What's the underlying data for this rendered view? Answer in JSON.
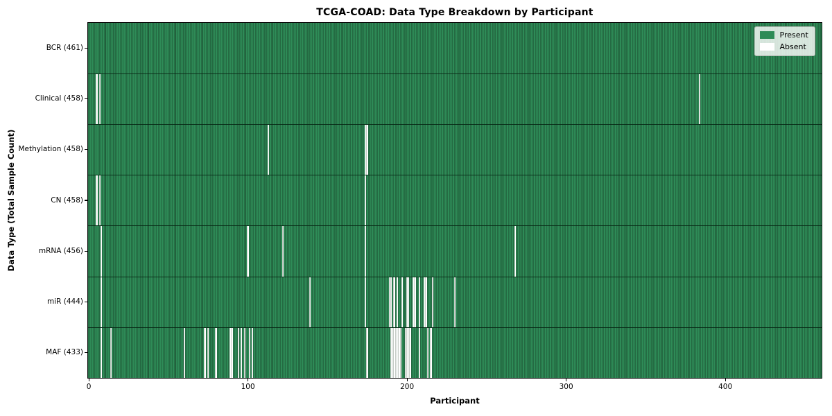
{
  "figure": {
    "title": "TCGA-COAD: Data Type Breakdown by Participant",
    "xlabel": "Participant",
    "ylabel": "Data Type (Total Sample Count)"
  },
  "legend": {
    "items": [
      {
        "label": "Present",
        "color": "#2e8b57"
      },
      {
        "label": "Absent",
        "color": "#ffffff"
      }
    ]
  },
  "colors": {
    "present_fill": "#2e8b57",
    "cell_edge": "#1b4a2e",
    "absent_fill": "#ffffff",
    "absent_separator": "rgba(125,140,128,0.75)",
    "row_divider": "#0b2314",
    "axis": "#000000"
  },
  "chart_data": {
    "type": "heatmap",
    "title": "TCGA-COAD: Data Type Breakdown by Participant",
    "xlabel": "Participant",
    "ylabel": "Data Type (Total Sample Count)",
    "n_participants": 461,
    "xlim": [
      -0.5,
      460.5
    ],
    "x_ticks": [
      0,
      100,
      200,
      300,
      400
    ],
    "grid": false,
    "legend_entries": [
      "Present",
      "Absent"
    ],
    "legend_position": "upper right",
    "cell_states": {
      "present": 1,
      "absent": 0
    },
    "rows": [
      {
        "name": "BCR",
        "label": "BCR (461)",
        "present_count": 461,
        "absent_participants": []
      },
      {
        "name": "Clinical",
        "label": "Clinical (458)",
        "present_count": 458,
        "absent_participants": [
          5,
          7,
          384
        ]
      },
      {
        "name": "Methylation",
        "label": "Methylation (458)",
        "present_count": 458,
        "absent_participants": [
          113,
          174,
          175
        ]
      },
      {
        "name": "CN",
        "label": "CN (458)",
        "present_count": 458,
        "absent_participants": [
          5,
          7,
          174
        ]
      },
      {
        "name": "mRNA",
        "label": "mRNA (456)",
        "present_count": 456,
        "absent_participants": [
          8,
          100,
          122,
          174,
          268
        ]
      },
      {
        "name": "miR",
        "label": "miR (444)",
        "present_count": 444,
        "absent_participants": [
          8,
          139,
          174,
          189,
          190,
          192,
          194,
          197,
          200,
          201,
          204,
          205,
          208,
          211,
          212,
          216,
          230
        ]
      },
      {
        "name": "MAF",
        "label": "MAF (433)",
        "present_count": 433,
        "absent_participants": [
          8,
          14,
          60,
          73,
          75,
          80,
          89,
          90,
          94,
          96,
          98,
          101,
          103,
          175,
          190,
          191,
          192,
          193,
          194,
          195,
          196,
          199,
          200,
          201,
          202,
          208,
          213,
          215
        ]
      }
    ]
  }
}
